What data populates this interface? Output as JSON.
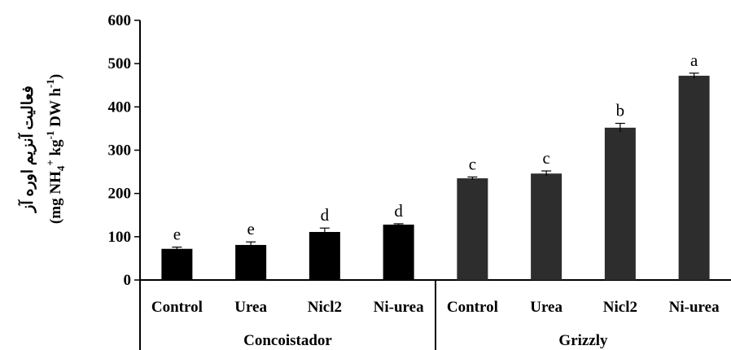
{
  "chart_data": {
    "type": "bar",
    "ylabel_fa": "فعالیت آنزیم اوره آز",
    "ylabel_unit": {
      "open": "(mg NH",
      "sub": "4",
      "sup_plus": "+",
      "kg": " kg",
      "sup_neg1": "-1",
      "dw": " DW h",
      "sup_neg1b": "-1",
      "close": ")"
    },
    "ylim": [
      0,
      600
    ],
    "yticks": [
      "0",
      "100",
      "200",
      "300",
      "400",
      "500",
      "600"
    ],
    "groups": [
      {
        "name": "Concoistador",
        "color": "#000000",
        "categories": [
          "Control",
          "Urea",
          "Nicl2",
          "Ni-urea"
        ],
        "values": [
          72,
          81,
          111,
          128
        ],
        "errors": [
          4,
          7,
          9,
          2
        ],
        "letters": [
          "e",
          "e",
          "d",
          "d"
        ]
      },
      {
        "name": "Grizzly",
        "color": "#2d2d2d",
        "categories": [
          "Control",
          "Urea",
          "Nicl2",
          "Ni-urea"
        ],
        "values": [
          235,
          246,
          352,
          472
        ],
        "errors": [
          3,
          6,
          10,
          6
        ],
        "letters": [
          "c",
          "c",
          "b",
          "a"
        ]
      }
    ]
  }
}
